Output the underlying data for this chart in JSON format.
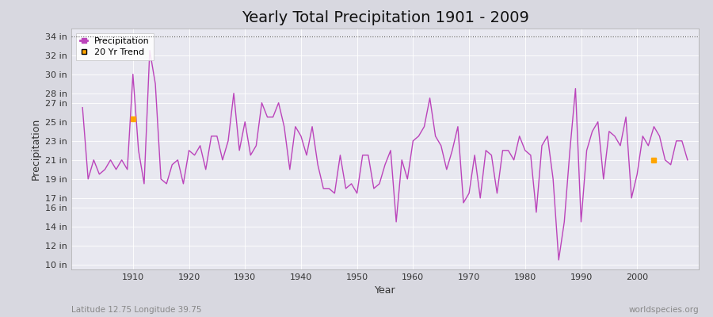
{
  "title": "Yearly Total Precipitation 1901 - 2009",
  "xlabel": "Year",
  "ylabel": "Precipitation",
  "lat_lon_label": "Latitude 12.75 Longitude 39.75",
  "source_label": "worldspecies.org",
  "line_color": "#BB44BB",
  "trend_color": "#FFA500",
  "fig_bg_color": "#D8D8E0",
  "plot_bg_color": "#E8E8F0",
  "title_fontsize": 14,
  "ylim": [
    9.5,
    34.8
  ],
  "yticks": [
    10,
    12,
    14,
    16,
    17,
    19,
    21,
    23,
    25,
    27,
    28,
    30,
    32,
    34
  ],
  "ytick_labels": [
    "10 in",
    "12 in",
    "14 in",
    "16 in",
    "17 in",
    "19 in",
    "21 in",
    "23 in",
    "25 in",
    "27 in",
    "28 in",
    "30 in",
    "32 in",
    "34 in"
  ],
  "years": [
    1901,
    1902,
    1903,
    1904,
    1905,
    1906,
    1907,
    1908,
    1909,
    1910,
    1911,
    1912,
    1913,
    1914,
    1915,
    1916,
    1917,
    1918,
    1919,
    1920,
    1921,
    1922,
    1923,
    1924,
    1925,
    1926,
    1927,
    1928,
    1929,
    1930,
    1931,
    1932,
    1933,
    1934,
    1935,
    1936,
    1937,
    1938,
    1939,
    1940,
    1941,
    1942,
    1943,
    1944,
    1945,
    1946,
    1947,
    1948,
    1949,
    1950,
    1951,
    1952,
    1953,
    1954,
    1955,
    1956,
    1957,
    1958,
    1959,
    1960,
    1961,
    1962,
    1963,
    1964,
    1965,
    1966,
    1967,
    1968,
    1969,
    1970,
    1971,
    1972,
    1973,
    1974,
    1975,
    1976,
    1977,
    1978,
    1979,
    1980,
    1981,
    1982,
    1983,
    1984,
    1985,
    1986,
    1987,
    1988,
    1989,
    1990,
    1991,
    1992,
    1993,
    1994,
    1995,
    1996,
    1997,
    1998,
    1999,
    2000,
    2001,
    2002,
    2003,
    2004,
    2005,
    2006,
    2007,
    2008,
    2009
  ],
  "precip": [
    26.5,
    19.0,
    21.0,
    19.5,
    20.0,
    21.0,
    20.0,
    21.0,
    20.0,
    30.0,
    22.0,
    18.5,
    32.5,
    29.0,
    19.0,
    18.5,
    20.5,
    21.0,
    18.5,
    22.0,
    21.5,
    22.5,
    20.0,
    23.5,
    23.5,
    21.0,
    23.0,
    28.0,
    22.0,
    25.0,
    21.5,
    22.5,
    27.0,
    25.5,
    25.5,
    27.0,
    24.5,
    20.0,
    24.5,
    23.5,
    21.5,
    24.5,
    20.5,
    18.0,
    18.0,
    17.5,
    21.5,
    18.0,
    18.5,
    17.5,
    21.5,
    21.5,
    18.0,
    18.5,
    20.5,
    22.0,
    14.5,
    21.0,
    19.0,
    23.0,
    23.5,
    24.5,
    27.5,
    23.5,
    22.5,
    20.0,
    22.0,
    24.5,
    16.5,
    17.5,
    21.5,
    17.0,
    22.0,
    21.5,
    17.5,
    22.0,
    22.0,
    21.0,
    23.5,
    22.0,
    21.5,
    15.5,
    22.5,
    23.5,
    19.0,
    10.5,
    14.5,
    22.0,
    28.5,
    14.5,
    22.0,
    24.0,
    25.0,
    19.0,
    24.0,
    23.5,
    22.5,
    25.5,
    17.0,
    19.5,
    23.5,
    22.5,
    24.5,
    23.5,
    21.0,
    20.5,
    23.0,
    23.0,
    21.0
  ],
  "trend_points": [
    [
      1910,
      25.3
    ],
    [
      2003,
      21.0
    ]
  ],
  "xlim": [
    1899,
    2011
  ],
  "xticks": [
    1910,
    1920,
    1930,
    1940,
    1950,
    1960,
    1970,
    1980,
    1990,
    2000
  ]
}
